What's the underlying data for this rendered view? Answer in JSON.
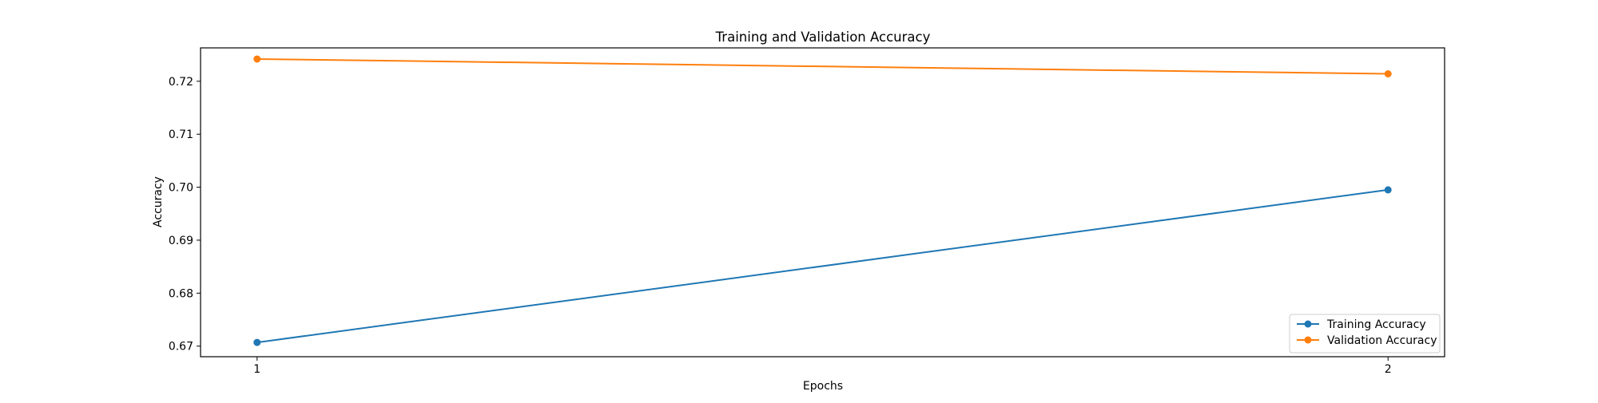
{
  "chart_data": {
    "type": "line",
    "title": "Training and Validation Accuracy",
    "xlabel": "Epochs",
    "ylabel": "Accuracy",
    "x": [
      1,
      2
    ],
    "xticks": [
      "1",
      "2"
    ],
    "xlim": [
      0.95,
      2.05
    ],
    "ylim": [
      0.668,
      0.7263
    ],
    "yticks": [
      "0.67",
      "0.68",
      "0.69",
      "0.70",
      "0.71",
      "0.72"
    ],
    "grid": false,
    "legend_position": "lower-right",
    "series": [
      {
        "name": "Training Accuracy",
        "values": [
          0.6707,
          0.6995
        ],
        "color": "#1f77b4",
        "marker": "circle"
      },
      {
        "name": "Validation Accuracy",
        "values": [
          0.7242,
          0.7214
        ],
        "color": "#ff7f0e",
        "marker": "circle"
      }
    ]
  }
}
